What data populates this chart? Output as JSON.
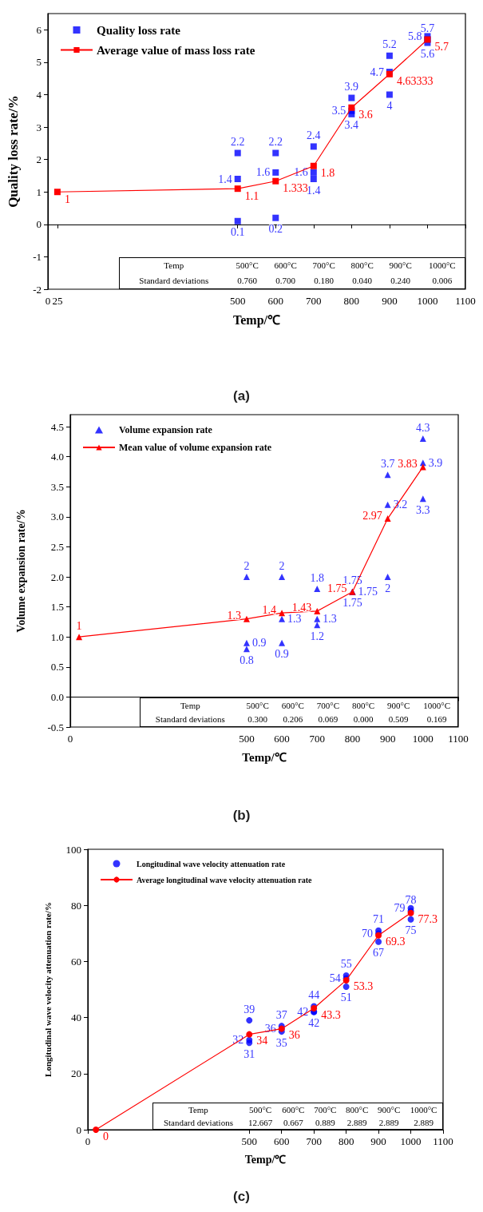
{
  "chart_data": [
    {
      "type": "scatter",
      "title": "(a)",
      "xlabel": "Temp/℃",
      "ylabel": "Quality loss rate/%",
      "xlim": [
        0,
        1100
      ],
      "xticks": [
        0,
        25,
        500,
        600,
        700,
        800,
        900,
        1000,
        1100
      ],
      "ylim": [
        -2,
        6.5
      ],
      "yticks": [
        -2,
        -1,
        0,
        1,
        2,
        3,
        4,
        5,
        6
      ],
      "legend": "top left",
      "data_labels": true,
      "annotations": [
        "Temp",
        "500°C",
        "600°C",
        "700°C",
        "800°C",
        "900°C",
        "1000°C",
        "Standard deviations",
        "0.760",
        "0.700",
        "0.180",
        "0.040",
        "0.240",
        "0.006"
      ],
      "series": [
        {
          "name": "Quality loss rate",
          "type": "scatter",
          "marker": "square",
          "color": "#0000ff",
          "x": [
            500,
            500,
            500,
            600,
            600,
            600,
            700,
            700,
            700,
            800,
            800,
            800,
            900,
            900,
            900,
            1000,
            1000,
            1000
          ],
          "values": [
            2.2,
            1.4,
            0.1,
            2.2,
            1.6,
            0.2,
            2.4,
            1.6,
            1.4,
            3.9,
            3.5,
            3.4,
            5.2,
            4.7,
            4,
            5.7,
            5.8,
            5.6
          ]
        },
        {
          "name": "Average value of mass loss rate",
          "type": "line",
          "marker": "square",
          "line_style": "solid",
          "color": "#ff0000",
          "x": [
            25,
            500,
            600,
            700,
            800,
            900,
            1000
          ],
          "values": [
            1,
            1.1,
            1.333,
            1.8,
            3.6,
            4.63333,
            5.7
          ]
        }
      ]
    },
    {
      "type": "scatter",
      "title": "(b)",
      "xlabel": "Temp/℃",
      "ylabel": "Volume expansion rate/%",
      "xlim": [
        0,
        1100
      ],
      "xticks": [
        0,
        500,
        600,
        700,
        800,
        900,
        1000,
        1100
      ],
      "ylim": [
        -0.5,
        4.7
      ],
      "yticks": [
        -0.5,
        {
          "value": 0,
          "label": "0.0"
        },
        0.5,
        {
          "value": 1,
          "label": "1.0"
        },
        1.5,
        {
          "value": 2,
          "label": "2.0"
        },
        2.5,
        {
          "value": 3,
          "label": "3.0"
        },
        3.5,
        {
          "value": 4,
          "label": "4.0"
        },
        4.5
      ],
      "legend": "top left",
      "data_labels": true,
      "annotations": [
        "Temp",
        "500°C",
        "600°C",
        "700°C",
        "800°C",
        "900°C",
        "1000°C",
        "Standard deviations",
        "0.300",
        "0.206",
        "0.069",
        "0.000",
        "0.509",
        "0.169"
      ],
      "series": [
        {
          "name": "Volume expansion rate",
          "type": "scatter",
          "marker": "triangle",
          "color": "#0000ff",
          "x": [
            500,
            500,
            500,
            600,
            600,
            600,
            700,
            700,
            700,
            800,
            800,
            800,
            900,
            900,
            900,
            1000,
            1000,
            1000
          ],
          "values": [
            2,
            0.9,
            0.8,
            2,
            1.3,
            0.9,
            1.8,
            1.3,
            1.2,
            1.75,
            1.75,
            1.75,
            3.7,
            3.2,
            2,
            4.3,
            3.9,
            3.3
          ]
        },
        {
          "name": "Mean value of volume expansion rate",
          "type": "line",
          "marker": "triangle",
          "line_style": "solid",
          "color": "#ff0000",
          "x": [
            25,
            500,
            600,
            700,
            800,
            900,
            1000
          ],
          "values": [
            1,
            1.3,
            1.4,
            1.43,
            1.75,
            2.97,
            3.83
          ]
        }
      ]
    },
    {
      "type": "scatter",
      "title": "(c)",
      "xlabel": "Temp/℃",
      "ylabel": "Longitudinal wave velocity attenuation rate/%",
      "xlim": [
        0,
        1100
      ],
      "xticks": [
        0,
        500,
        600,
        700,
        800,
        900,
        1000,
        1100
      ],
      "ylim": [
        0,
        100
      ],
      "yticks": [
        0,
        20,
        40,
        60,
        80,
        100
      ],
      "legend": "top left",
      "data_labels": true,
      "annotations": [
        "Temp",
        "500°C",
        "600°C",
        "700°C",
        "800°C",
        "900°C",
        "1000°C",
        "Standard deviations",
        "12.667",
        "0.667",
        "0.889",
        "2.889",
        "2.889",
        "2.889"
      ],
      "series": [
        {
          "name": "Longitudinal wave velocity attenuation rate",
          "type": "scatter",
          "marker": "circle",
          "color": "#0000ff",
          "x": [
            500,
            500,
            500,
            600,
            600,
            600,
            700,
            700,
            700,
            800,
            800,
            800,
            900,
            900,
            900,
            1000,
            1000,
            1000
          ],
          "values": [
            39,
            32,
            31,
            37,
            36,
            35,
            44,
            42,
            42,
            55,
            54,
            51,
            71,
            70,
            67,
            78,
            79,
            75
          ]
        },
        {
          "name": "Average longitudinal wave velocity attenuation rate",
          "type": "line",
          "marker": "circle",
          "line_style": "solid",
          "color": "#ff0000",
          "x": [
            25,
            500,
            600,
            700,
            800,
            900,
            1000
          ],
          "values": [
            0,
            34,
            36,
            43.3,
            53.3,
            69.3,
            77.3
          ]
        }
      ]
    }
  ]
}
